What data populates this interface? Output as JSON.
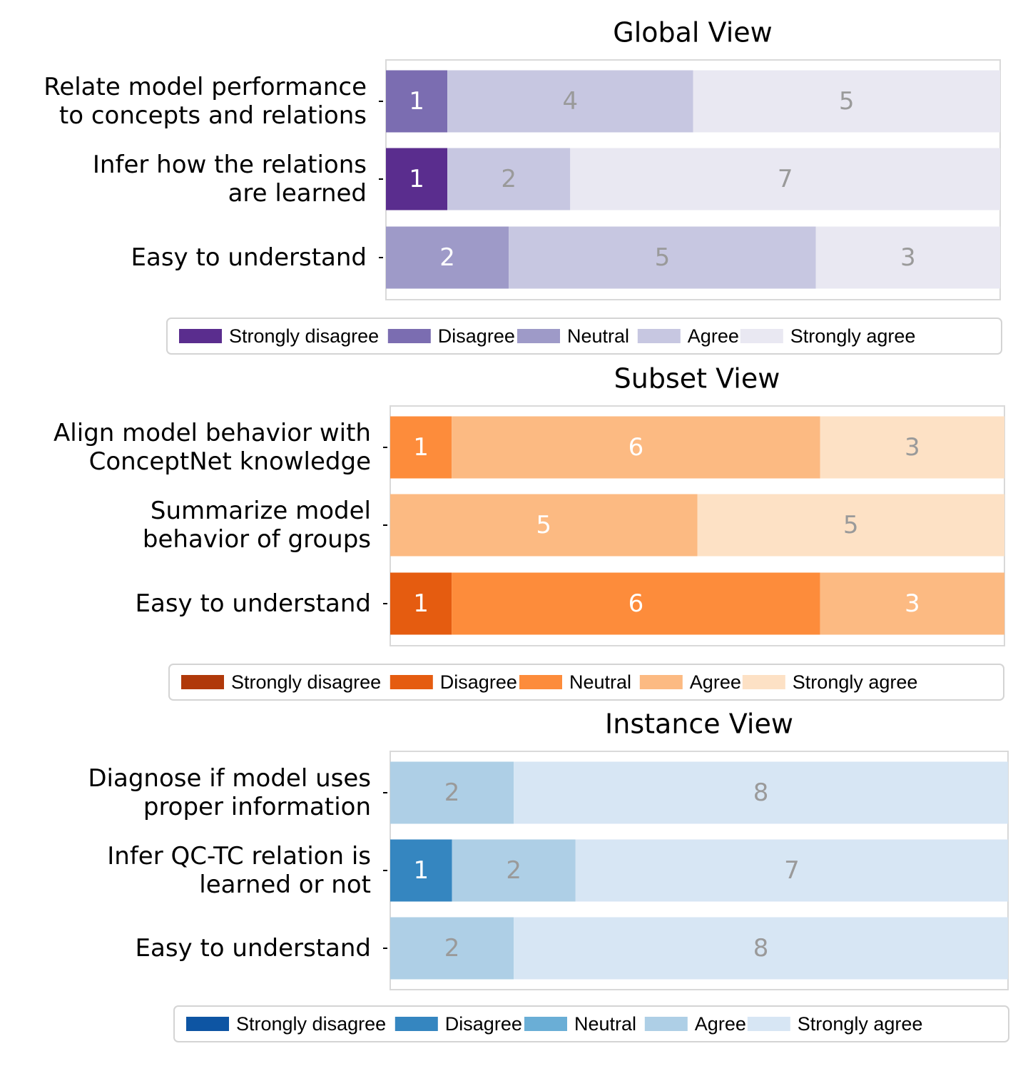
{
  "chart_data": [
    {
      "type": "bar",
      "orientation": "horizontal",
      "stacked": true,
      "title": "Global View",
      "categories": [
        "Relate model performance\nto concepts and relations",
        "Infer how the relations\nare learned",
        "Easy to understand"
      ],
      "series": [
        {
          "name": "Strongly disagree",
          "color": "#5a2d8e",
          "values": [
            0,
            1,
            0
          ]
        },
        {
          "name": "Disagree",
          "color": "#7b6db1",
          "values": [
            1,
            0,
            0
          ]
        },
        {
          "name": "Neutral",
          "color": "#9e9ac8",
          "values": [
            0,
            0,
            2
          ]
        },
        {
          "name": "Agree",
          "color": "#c7c7e1",
          "values": [
            4,
            2,
            5
          ]
        },
        {
          "name": "Strongly agree",
          "color": "#e9e8f2",
          "values": [
            5,
            7,
            3
          ]
        }
      ],
      "label_colors": {
        "Strongly disagree": "#ffffff",
        "Disagree": "#ffffff",
        "Neutral": "#ffffff",
        "Agree": "#9a9a9a",
        "Strongly agree": "#9a9a9a"
      },
      "xlim": [
        0,
        10
      ],
      "grid": false,
      "legend": "bottom"
    },
    {
      "type": "bar",
      "orientation": "horizontal",
      "stacked": true,
      "title": "Subset View",
      "categories": [
        "Align model behavior with\nConceptNet knowledge",
        "Summarize model\nbehavior of groups",
        "Easy to understand"
      ],
      "series": [
        {
          "name": "Strongly disagree",
          "color": "#b0390a",
          "values": [
            0,
            0,
            0
          ]
        },
        {
          "name": "Disagree",
          "color": "#e55c10",
          "values": [
            0,
            0,
            1
          ]
        },
        {
          "name": "Neutral",
          "color": "#fd8c3b",
          "values": [
            1,
            0,
            6
          ]
        },
        {
          "name": "Agree",
          "color": "#fcba82",
          "values": [
            6,
            5,
            3
          ]
        },
        {
          "name": "Strongly agree",
          "color": "#fde1c5",
          "values": [
            3,
            5,
            0
          ]
        }
      ],
      "label_colors": {
        "Strongly disagree": "#ffffff",
        "Disagree": "#ffffff",
        "Neutral": "#ffffff",
        "Agree": "#ffffff",
        "Strongly agree": "#9a9a9a"
      },
      "xlim": [
        0,
        10
      ],
      "grid": false,
      "legend": "bottom"
    },
    {
      "type": "bar",
      "orientation": "horizontal",
      "stacked": true,
      "title": "Instance View",
      "categories": [
        "Diagnose if model uses\nproper information",
        "Infer QC-TC relation is\nlearned or not",
        "Easy to understand"
      ],
      "series": [
        {
          "name": "Strongly disagree",
          "color": "#0e55a3",
          "values": [
            0,
            0,
            0
          ]
        },
        {
          "name": "Disagree",
          "color": "#3586c0",
          "values": [
            0,
            1,
            0
          ]
        },
        {
          "name": "Neutral",
          "color": "#6aaed6",
          "values": [
            0,
            0,
            0
          ]
        },
        {
          "name": "Agree",
          "color": "#aecfe6",
          "values": [
            2,
            2,
            2
          ]
        },
        {
          "name": "Strongly agree",
          "color": "#d7e6f4",
          "values": [
            8,
            7,
            8
          ]
        }
      ],
      "label_colors": {
        "Strongly disagree": "#ffffff",
        "Disagree": "#ffffff",
        "Neutral": "#ffffff",
        "Agree": "#9a9a9a",
        "Strongly agree": "#9a9a9a"
      },
      "xlim": [
        0,
        10
      ],
      "grid": false,
      "legend": "bottom"
    }
  ]
}
